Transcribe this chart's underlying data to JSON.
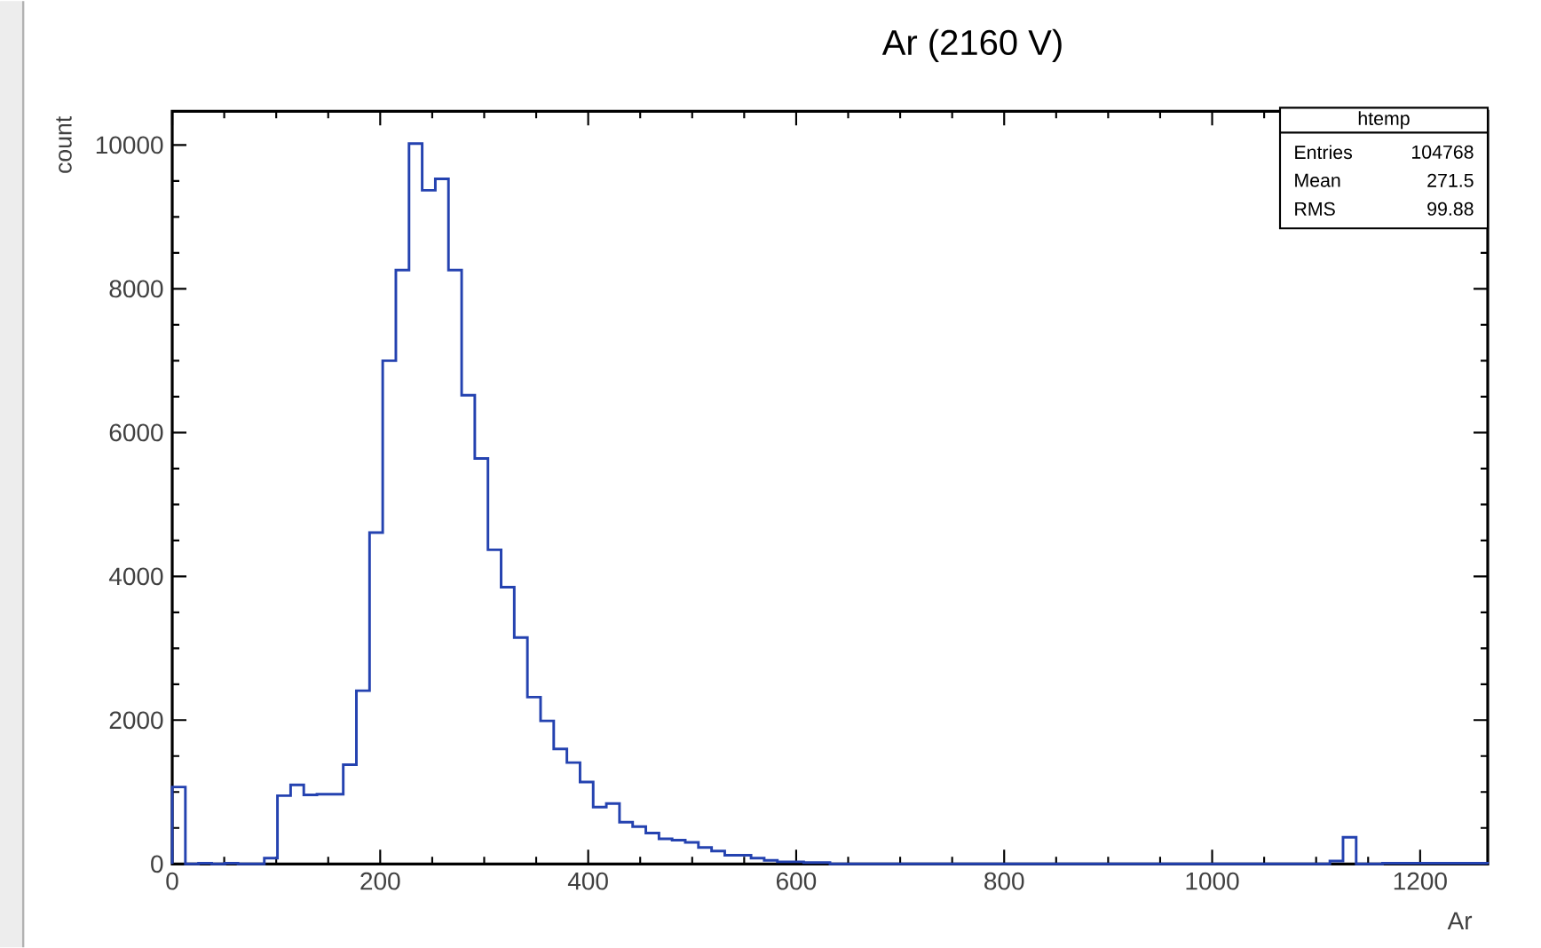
{
  "chart_data": {
    "type": "histogram",
    "title": "Ar (2160 V)",
    "xlabel": "Ar",
    "ylabel": "count",
    "bins": [
      0,
      12.65,
      25.3,
      37.95,
      50.6,
      63.25,
      75.9,
      88.55,
      101.2,
      113.85,
      126.5,
      139.15,
      151.8,
      164.45,
      177.1,
      189.75,
      202.4,
      215.05,
      227.7,
      240.35,
      253,
      265.65,
      278.3,
      290.95,
      303.6,
      316.25,
      328.9,
      341.55,
      354.2,
      366.85,
      379.5,
      392.15,
      404.8,
      417.45,
      430.1,
      442.75,
      455.4,
      468.05,
      480.7,
      493.35,
      506,
      518.65,
      531.3,
      543.95,
      556.6,
      569.25,
      581.9,
      594.55,
      607.2,
      619.85,
      632.5,
      645.15,
      657.8,
      670.45,
      683.1,
      695.75,
      708.4,
      721.05,
      733.7,
      746.35,
      759,
      771.65,
      784.3,
      796.95,
      809.6,
      822.25,
      834.9,
      847.55,
      860.2,
      872.85,
      885.5,
      898.15,
      910.8,
      923.45,
      936.1,
      948.75,
      961.4,
      974.05,
      986.7,
      999.35,
      1012,
      1024.65,
      1037.3,
      1049.95,
      1062.6,
      1075.25,
      1087.9,
      1100.55,
      1113.2,
      1125.85,
      1138.5,
      1151.15,
      1163.8,
      1176.45,
      1189.1,
      1201.75,
      1214.4,
      1227.05,
      1239.7,
      1252.35,
      1265
    ],
    "values": [
      1070,
      0,
      10,
      0,
      10,
      0,
      0,
      80,
      950,
      1100,
      960,
      970,
      970,
      1380,
      2410,
      4610,
      7000,
      8260,
      10020,
      9370,
      9530,
      8260,
      6520,
      5640,
      4370,
      3850,
      3150,
      2320,
      1990,
      1600,
      1410,
      1140,
      790,
      840,
      580,
      520,
      430,
      350,
      330,
      300,
      230,
      180,
      120,
      120,
      80,
      50,
      30,
      30,
      20,
      20,
      0,
      0,
      0,
      0,
      0,
      0,
      0,
      0,
      0,
      0,
      0,
      0,
      0,
      0,
      0,
      0,
      0,
      0,
      0,
      0,
      0,
      0,
      0,
      0,
      0,
      0,
      0,
      0,
      0,
      0,
      0,
      0,
      0,
      0,
      0,
      0,
      0,
      0,
      40,
      370,
      0,
      0,
      10,
      10,
      10,
      10,
      10,
      10,
      10,
      10
    ],
    "color": "#2442b0",
    "xlim": [
      0,
      1265
    ],
    "ylim": [
      0,
      10470
    ],
    "xticks": [
      0,
      200,
      400,
      600,
      800,
      1000,
      1200
    ],
    "yticks": [
      0,
      2000,
      4000,
      6000,
      8000,
      10000
    ],
    "grid": false,
    "annotations": [
      "htemp",
      "Entries",
      "104768",
      "Mean",
      "271.5",
      "RMS",
      "99.88"
    ]
  }
}
